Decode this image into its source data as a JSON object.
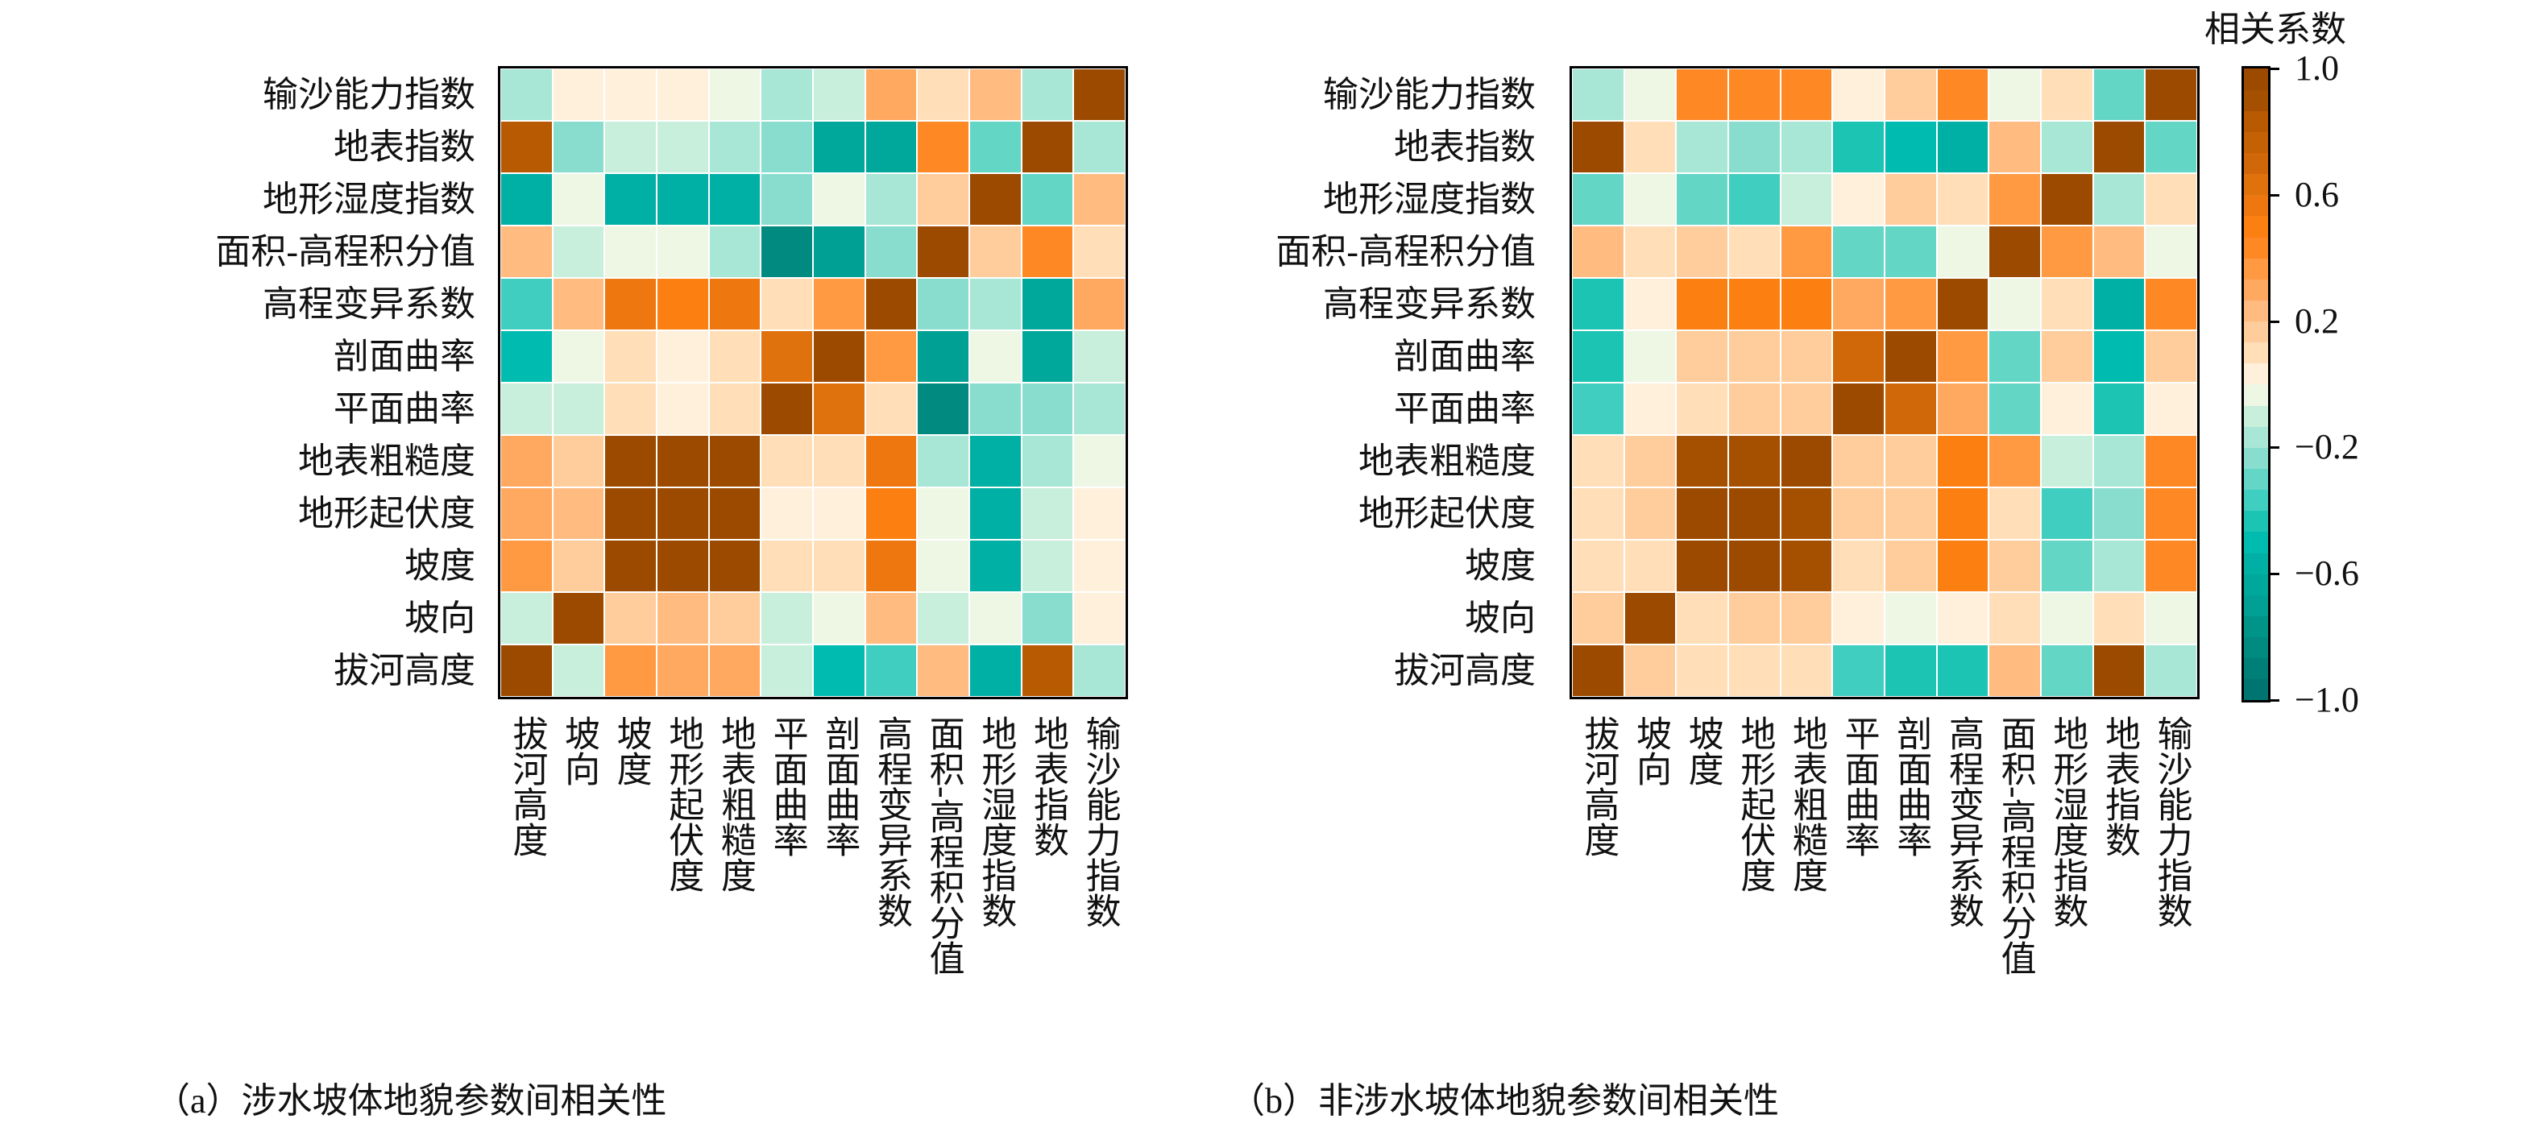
{
  "chart_data": {
    "type": "heatmap",
    "colorbar": {
      "title": "相关系数",
      "range": [
        -1.0,
        1.0
      ],
      "ticks": [
        1.0,
        0.6,
        0.2,
        -0.2,
        -0.6,
        -1.0
      ],
      "tick_labels": [
        "1.0",
        "0.6",
        "0.2",
        "−0.2",
        "−0.6",
        "−1.0"
      ],
      "palette_low_to_high": [
        "#007470",
        "#007e78",
        "#008a80",
        "#009488",
        "#00a094",
        "#00a89c",
        "#00b0a4",
        "#00bcb0",
        "#1cc4b4",
        "#40cec0",
        "#64d6c6",
        "#88ddce",
        "#a8e6d6",
        "#c8eedc",
        "#eef6e4",
        "#fff0dc",
        "#ffdeb8",
        "#ffcc9c",
        "#ffbb80",
        "#ffa860",
        "#ff9a42",
        "#fe8824",
        "#fc7f12",
        "#ee7710",
        "#e0720e",
        "#d0680a",
        "#c46105",
        "#b85a02",
        "#a55000",
        "#9b4a00"
      ]
    },
    "panels": [
      {
        "caption": "（a）涉水坡体地貌参数间相关性",
        "row_labels": [
          "输沙能力指数",
          "地表指数",
          "地形湿度指数",
          "面积-高程积分值",
          "高程变异系数",
          "剖面曲率",
          "平面曲率",
          "地表粗糙度",
          "地形起伏度",
          "坡度",
          "坡向",
          "拔河高度"
        ],
        "col_labels": [
          "拔河高度",
          "坡向",
          "坡度",
          "地形起伏度",
          "地表粗糙度",
          "平面曲率",
          "剖面曲率",
          "高程变异系数",
          "面积-高程积分值",
          "地形湿度指数",
          "地表指数",
          "输沙能力指数"
        ],
        "values": [
          [
            -0.17,
            0.03,
            0.03,
            0.03,
            -0.03,
            -0.17,
            -0.1,
            0.32,
            0.1,
            0.25,
            -0.17,
            1.0
          ],
          [
            0.8,
            -0.23,
            -0.1,
            -0.1,
            -0.17,
            -0.23,
            -0.62,
            -0.62,
            0.45,
            -0.3,
            1.0,
            -0.17
          ],
          [
            -0.57,
            -0.03,
            -0.57,
            -0.57,
            -0.57,
            -0.23,
            -0.03,
            -0.17,
            0.18,
            1.0,
            -0.3,
            0.25
          ],
          [
            0.25,
            -0.1,
            -0.03,
            -0.03,
            -0.17,
            -0.85,
            -0.68,
            -0.23,
            1.0,
            0.18,
            0.45,
            0.1
          ],
          [
            -0.37,
            0.25,
            0.55,
            0.5,
            0.55,
            0.1,
            0.38,
            1.0,
            -0.23,
            -0.17,
            -0.62,
            0.32
          ],
          [
            -0.5,
            -0.03,
            0.1,
            0.03,
            0.1,
            0.65,
            1.0,
            0.38,
            -0.68,
            -0.03,
            -0.62,
            -0.1
          ],
          [
            -0.1,
            -0.1,
            0.1,
            0.03,
            0.1,
            1.0,
            0.65,
            0.1,
            -0.85,
            -0.23,
            -0.23,
            -0.17
          ],
          [
            0.32,
            0.18,
            1.0,
            1.0,
            1.0,
            0.1,
            0.1,
            0.55,
            -0.17,
            -0.57,
            -0.17,
            -0.03
          ],
          [
            0.32,
            0.25,
            1.0,
            1.0,
            1.0,
            0.03,
            0.03,
            0.5,
            -0.03,
            -0.57,
            -0.1,
            0.03
          ],
          [
            0.38,
            0.18,
            1.0,
            1.0,
            1.0,
            0.1,
            0.1,
            0.55,
            -0.03,
            -0.57,
            -0.1,
            0.03
          ],
          [
            -0.1,
            1.0,
            0.18,
            0.25,
            0.18,
            -0.1,
            -0.03,
            0.25,
            -0.1,
            -0.03,
            -0.23,
            0.03
          ],
          [
            1.0,
            -0.1,
            0.38,
            0.32,
            0.32,
            -0.1,
            -0.5,
            -0.37,
            0.25,
            -0.57,
            0.8,
            -0.17
          ]
        ]
      },
      {
        "caption": "（b）非涉水坡体地貌参数间相关性",
        "row_labels": [
          "输沙能力指数",
          "地表指数",
          "地形湿度指数",
          "面积-高程积分值",
          "高程变异系数",
          "剖面曲率",
          "平面曲率",
          "地表粗糙度",
          "地形起伏度",
          "坡度",
          "坡向",
          "拔河高度"
        ],
        "col_labels": [
          "拔河高度",
          "坡向",
          "坡度",
          "地形起伏度",
          "地表粗糙度",
          "平面曲率",
          "剖面曲率",
          "高程变异系数",
          "面积-高程积分值",
          "地形湿度指数",
          "地表指数",
          "输沙能力指数"
        ],
        "values": [
          [
            -0.17,
            -0.03,
            0.45,
            0.45,
            0.45,
            0.03,
            0.18,
            0.45,
            -0.03,
            0.1,
            -0.3,
            1.0
          ],
          [
            1.0,
            0.1,
            -0.17,
            -0.23,
            -0.17,
            -0.43,
            -0.5,
            -0.57,
            0.25,
            -0.17,
            1.0,
            -0.3
          ],
          [
            -0.3,
            -0.03,
            -0.3,
            -0.37,
            -0.1,
            0.03,
            0.18,
            0.1,
            0.38,
            1.0,
            -0.17,
            0.1
          ],
          [
            0.25,
            0.1,
            0.18,
            0.1,
            0.38,
            -0.3,
            -0.3,
            -0.03,
            1.0,
            0.38,
            0.25,
            -0.03
          ],
          [
            -0.43,
            0.03,
            0.5,
            0.5,
            0.5,
            0.32,
            0.38,
            1.0,
            -0.03,
            0.1,
            -0.57,
            0.45
          ],
          [
            -0.43,
            -0.03,
            0.18,
            0.18,
            0.18,
            0.7,
            1.0,
            0.38,
            -0.3,
            0.18,
            -0.5,
            0.18
          ],
          [
            -0.37,
            0.03,
            0.1,
            0.18,
            0.18,
            1.0,
            0.7,
            0.32,
            -0.3,
            0.03,
            -0.43,
            0.03
          ],
          [
            0.1,
            0.18,
            0.93,
            0.93,
            1.0,
            0.18,
            0.18,
            0.5,
            0.38,
            -0.1,
            -0.17,
            0.45
          ],
          [
            0.1,
            0.18,
            1.0,
            1.0,
            0.93,
            0.18,
            0.18,
            0.5,
            0.1,
            -0.37,
            -0.23,
            0.45
          ],
          [
            0.1,
            0.1,
            1.0,
            1.0,
            0.93,
            0.1,
            0.18,
            0.5,
            0.18,
            -0.3,
            -0.17,
            0.45
          ],
          [
            0.18,
            1.0,
            0.1,
            0.18,
            0.18,
            0.03,
            -0.03,
            0.03,
            0.1,
            -0.03,
            0.1,
            -0.03
          ],
          [
            1.0,
            0.18,
            0.1,
            0.1,
            0.1,
            -0.37,
            -0.43,
            -0.43,
            0.25,
            -0.3,
            1.0,
            -0.17
          ]
        ]
      }
    ]
  }
}
